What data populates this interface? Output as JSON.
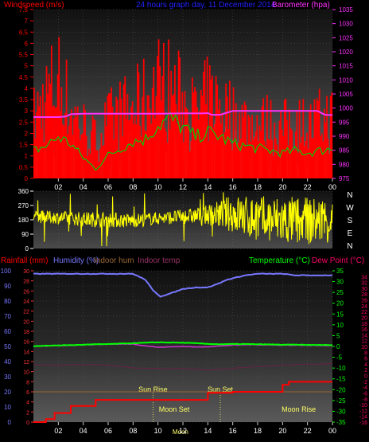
{
  "colors": {
    "wind": "#ff0000",
    "gust": "#ff0000",
    "windbars": "#ccffcc",
    "windgreen": "#00cc00",
    "pressure": "#ff33ff",
    "dir": "#ffff00",
    "temp": "#00ff00",
    "dew": "#ff0066",
    "hum": "#7777ff",
    "inhum": "#996633",
    "intemp": "#662244",
    "rain": "#ff0000",
    "blue_title": "#2222ff",
    "red_title": "#ff0000"
  },
  "titles": {
    "windspeed": "Windspeed (m/s)",
    "graph": "24 hours graph day,  11 December 2014",
    "barometer": "Barometer (hpa)",
    "rainfall": "Rainfall (mm)",
    "humidity": "Humidity (%)",
    "indoor_hum": "Indoor hum",
    "indoor_temp": "Indoor temp",
    "temperature": "Temperature (°C)",
    "dewpoint": "Dew Point (°C)"
  },
  "compass": [
    "N",
    "W",
    "S",
    "E",
    "N"
  ],
  "x_ticks": [
    "02",
    "04",
    "06",
    "08",
    "10",
    "12",
    "14",
    "16",
    "18",
    "20",
    "22",
    "00"
  ],
  "events": {
    "sun_rise": "Sun Rise",
    "sun_set": "Sun Set",
    "moon_set": "Moon Set",
    "moon_rise": "Moon Rise"
  },
  "chart_data": [
    {
      "type": "bar",
      "title": "24 hours graph day,  11 December 2014",
      "ylabel": "Windspeed (m/s)",
      "y_ticks": [
        "0",
        "0.5",
        "1",
        "1.5",
        "2",
        "2.5",
        "3",
        "3.5",
        "4",
        "4.5",
        "5",
        "5.5",
        "6",
        "6.5",
        "7",
        "7.5"
      ],
      "ylim": [
        0,
        7.5
      ],
      "y2label": "Barometer (hpa)",
      "y2_ticks": [
        "975",
        "980",
        "985",
        "990",
        "995",
        "1000",
        "1005",
        "1010",
        "1015",
        "1020",
        "1025",
        "1030",
        "1035"
      ],
      "y2lim": [
        975,
        1035
      ],
      "xlim": [
        0,
        24
      ],
      "avg_wind": {
        "t": [
          0,
          1,
          2,
          3,
          4,
          5,
          6,
          7,
          8,
          9,
          10,
          11,
          12,
          13,
          14,
          15,
          16,
          17,
          18,
          19,
          20,
          21,
          22,
          23,
          24
        ],
        "v": [
          1.2,
          1.4,
          1.8,
          1.5,
          0.9,
          0.4,
          1.0,
          1.3,
          1.6,
          1.7,
          2.3,
          2.6,
          2.2,
          1.8,
          2.0,
          1.8,
          1.5,
          1.4,
          1.3,
          1.2,
          1.1,
          1.2,
          1.1,
          1.2,
          1.3
        ]
      },
      "gust": {
        "t": [
          0,
          1,
          2,
          3,
          4,
          5,
          6,
          7,
          8,
          9,
          10,
          11,
          12,
          13,
          14,
          15,
          16,
          17,
          18,
          19,
          20,
          21,
          22,
          23,
          24
        ],
        "v": [
          4.0,
          5.5,
          6.7,
          4.6,
          3.5,
          2.6,
          3.8,
          4.4,
          4.6,
          5.4,
          6.3,
          6.1,
          5.2,
          4.3,
          5.3,
          5.0,
          4.2,
          3.9,
          3.6,
          3.7,
          3.3,
          4.0,
          3.4,
          3.9,
          4.1
        ]
      },
      "pressure": {
        "t": [
          0,
          2,
          2.6,
          3,
          4,
          5,
          6,
          8,
          10,
          12,
          13.5,
          14,
          14.3,
          15,
          16,
          16.5,
          18,
          20,
          22,
          22.8,
          23.4,
          24
        ],
        "v": [
          996.8,
          996.8,
          997.0,
          997.8,
          998.0,
          998.0,
          998.0,
          998.0,
          998.0,
          998.1,
          998.1,
          998.2,
          997.6,
          997.6,
          999.0,
          999.0,
          999.0,
          999.0,
          999.0,
          999.0,
          997.6,
          997.5
        ]
      }
    },
    {
      "type": "line",
      "ylabel": "Wind direction",
      "y_ticks": [
        "0",
        "90",
        "180",
        "270",
        "360"
      ],
      "ylim": [
        0,
        360
      ],
      "xlim": [
        0,
        24
      ],
      "dir": {
        "t": [
          0,
          2,
          4,
          6,
          8,
          10,
          12,
          14,
          16,
          18,
          20,
          22,
          24
        ],
        "v": [
          200,
          195,
          185,
          180,
          175,
          190,
          200,
          210,
          220,
          180,
          175,
          170,
          180
        ],
        "spread": [
          40,
          40,
          45,
          50,
          45,
          40,
          45,
          60,
          120,
          150,
          160,
          150,
          140
        ]
      }
    },
    {
      "type": "line",
      "xlim": [
        0,
        24
      ],
      "y_left_ticks": [
        "0",
        "10",
        "20",
        "30",
        "40",
        "50",
        "60",
        "70",
        "80",
        "90",
        "100"
      ],
      "y_left2_ticks": [
        "0",
        "2",
        "4",
        "6",
        "8",
        "10",
        "12",
        "14",
        "16",
        "18",
        "20",
        "22",
        "24",
        "26",
        "28",
        "30"
      ],
      "y_right_ticks": [
        "-35",
        "-30",
        "-25",
        "-20",
        "-15",
        "-10",
        "-5",
        "0",
        "5",
        "10",
        "15",
        "20",
        "25",
        "30",
        "35"
      ],
      "y_right2_ticks": [
        "-16",
        "-14",
        "-12",
        "-10",
        "-8",
        "-6",
        "-4",
        "-2",
        "0",
        "2",
        "4",
        "6",
        "8",
        "10",
        "12",
        "14",
        "16",
        "18",
        "20",
        "22",
        "24",
        "26",
        "28",
        "30",
        "32",
        "34"
      ],
      "ylim_hum": [
        0,
        100
      ],
      "ylim_temp": [
        -35,
        35
      ],
      "ylim_rain": [
        0,
        30
      ],
      "humidity": {
        "t": [
          0,
          6,
          7.5,
          8,
          9,
          9.6,
          10.2,
          11,
          12,
          13,
          14,
          15,
          15.5,
          16,
          17,
          18,
          20,
          21,
          23,
          24
        ],
        "v": [
          98,
          98,
          98,
          98,
          94,
          87,
          83,
          85,
          88,
          89,
          89,
          92,
          94,
          95,
          97,
          98,
          98,
          97,
          97,
          97
        ]
      },
      "temperature": {
        "t": [
          0,
          1,
          2,
          3,
          4,
          5,
          6,
          7,
          8,
          9,
          10,
          11,
          12,
          13,
          14,
          15,
          16,
          17,
          18,
          19,
          20,
          21,
          22,
          23,
          24
        ],
        "v": [
          0.1,
          0.3,
          0.5,
          0.6,
          0.8,
          1.0,
          1.1,
          1.3,
          1.5,
          1.7,
          1.9,
          1.8,
          1.7,
          1.5,
          1.2,
          1.0,
          1.1,
          1.1,
          1.0,
          0.9,
          0.8,
          0.8,
          0.7,
          0.7,
          0.6
        ]
      },
      "dewpoint": {
        "t": [
          0,
          1,
          2,
          3,
          4,
          5,
          6,
          7,
          8,
          9,
          10,
          11,
          12,
          13,
          14,
          15,
          16,
          17,
          18,
          19,
          20,
          21,
          22,
          23,
          24
        ],
        "v": [
          0.0,
          0.2,
          0.4,
          0.5,
          0.7,
          0.9,
          1.0,
          1.1,
          1.1,
          0.3,
          -0.4,
          -0.2,
          0.0,
          -0.3,
          -0.1,
          0.2,
          0.6,
          0.8,
          0.8,
          0.7,
          0.6,
          0.6,
          0.5,
          0.5,
          0.4
        ]
      },
      "indoor_temp": {
        "t": [
          0,
          2,
          4,
          6,
          8,
          10,
          12,
          14,
          16,
          18,
          20,
          22,
          24
        ],
        "v": [
          -8.5,
          -8.7,
          -8.4,
          -8.6,
          -10.0,
          -10.3,
          -10.1,
          -10.9,
          -10.0,
          -9.4,
          -8.7,
          -8.2,
          -8.0
        ]
      },
      "indoor_hum": {
        "t": [
          0,
          24
        ],
        "v": [
          20,
          20
        ]
      },
      "rain": {
        "t": [
          0,
          1,
          1.7,
          3,
          4,
          5,
          6,
          8,
          10,
          12,
          14,
          15,
          16,
          18,
          20,
          20.5,
          21,
          24
        ],
        "v": [
          0,
          0.6,
          1.8,
          3.2,
          3.2,
          4.4,
          4.4,
          4.4,
          4.4,
          4.4,
          5.8,
          5.8,
          6.0,
          6.0,
          7.4,
          8.0,
          8.0,
          8.0
        ]
      },
      "events_at": {
        "sun_rise": 9.6,
        "sun_set": 15.0,
        "moon_set": 11.3,
        "moon_rise": 21.3
      }
    }
  ]
}
